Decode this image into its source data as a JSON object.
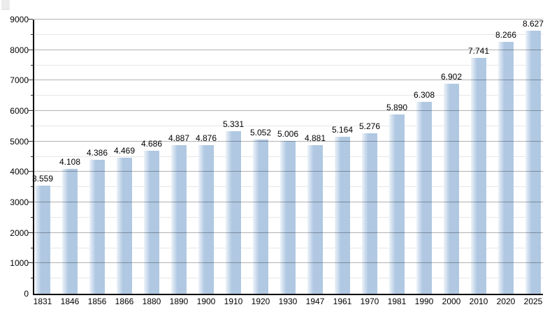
{
  "chart_data": {
    "type": "bar",
    "title": "",
    "xlabel": "",
    "ylabel": "",
    "categories": [
      "1831",
      "1846",
      "1856",
      "1866",
      "1880",
      "1890",
      "1900",
      "1910",
      "1920",
      "1930",
      "1947",
      "1961",
      "1970",
      "1981",
      "1990",
      "2000",
      "2010",
      "2020",
      "2025"
    ],
    "values": [
      3559,
      4108,
      4386,
      4469,
      4686,
      4887,
      4876,
      5331,
      5052,
      5006,
      4881,
      5164,
      5276,
      5890,
      6308,
      6902,
      7741,
      8266,
      8627
    ],
    "value_labels": [
      "3.559",
      "4.108",
      "4.386",
      "4.469",
      "4.686",
      "4.887",
      "4.876",
      "5.331",
      "5.052",
      "5.006",
      "4.881",
      "5.164",
      "5.276",
      "5.890",
      "6.308",
      "6.902",
      "7.741",
      "8.266",
      "8.627"
    ],
    "value_label_format": "thousands-dot",
    "ylim": [
      0,
      9000
    ],
    "y_major_step": 1000,
    "y_minor_step": 500,
    "y_tick_labels": [
      "0",
      "1000",
      "2000",
      "3000",
      "4000",
      "5000",
      "6000",
      "7000",
      "8000",
      "9000"
    ],
    "grid": "on",
    "legend_position": "none",
    "colors": {
      "bar_fill": "#b0c8e2",
      "bar_highlight": "#edf3fa",
      "grid_major": "#b3b3b3",
      "grid_minor": "#e7e7e7",
      "axis": "#000000",
      "label_text": "#000000",
      "background": "#ffffff"
    }
  }
}
